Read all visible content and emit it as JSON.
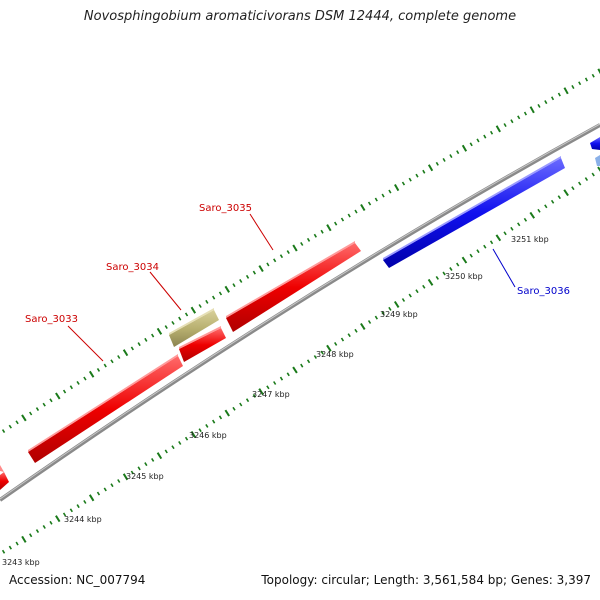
{
  "title": "Novosphingobium aromaticivorans DSM 12444, complete genome",
  "footer": {
    "accession": "Accession: NC_007794",
    "summary": "Topology: circular; Length: 3,561,584 bp; Genes: 3,397"
  },
  "colors": {
    "backbone": "#808080",
    "tick_dots": "#1a7a1a",
    "forward_gene": "#e60000",
    "reverse_gene": "#1010e8",
    "other_feature": "#b8b070",
    "forward_label": "#cc0000",
    "reverse_label": "#0000cc"
  },
  "scale": {
    "unit": "kbp",
    "labels": [
      "3243 kbp",
      "3244 kbp",
      "3245 kbp",
      "3246 kbp",
      "3247 kbp",
      "3248 kbp",
      "3249 kbp",
      "3250 kbp",
      "3251 kbp"
    ]
  },
  "genes": [
    {
      "name": "Saro_3033",
      "strand": "forward"
    },
    {
      "name": "Saro_3034",
      "strand": "forward"
    },
    {
      "name": "Saro_3035",
      "strand": "forward"
    },
    {
      "name": "Saro_3036",
      "strand": "reverse"
    }
  ]
}
